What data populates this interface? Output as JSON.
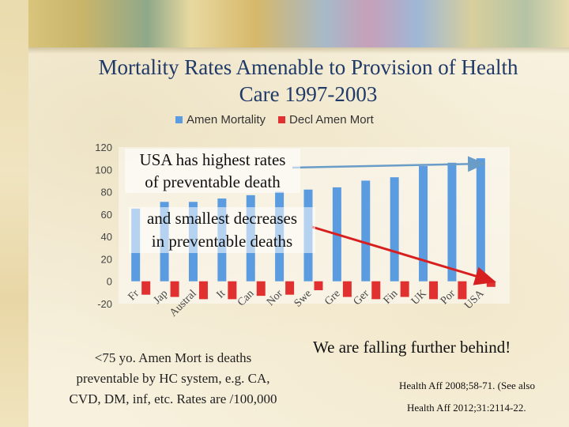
{
  "title_line1": "Mortality Rates Amenable to Provision of Health",
  "title_line2": "Care 1997-2003",
  "annotations": {
    "highest_line1": "USA has highest rates",
    "highest_line2": "of preventable death",
    "smallest_line1": "and smallest decreases",
    "smallest_line2": "in preventable deaths"
  },
  "note": {
    "line1": "<75 yo.  Amen Mort is deaths",
    "line2": "preventable by HC system, e.g. CA,",
    "line3": "CVD, DM, inf, etc. Rates are /100,000"
  },
  "falling_behind": "We are falling further behind!",
  "citation_line1": "Health Aff 2008;58-71. (See also",
  "citation_line2": "Health Aff 2012;31:2114-22.",
  "colors": {
    "amen": "#5b9bdf",
    "decl": "#e03030",
    "arrow_blue": "#6a9cc8",
    "arrow_red": "#d81f1f",
    "title": "#1f3a68"
  },
  "chart_data": {
    "type": "bar",
    "categories": [
      "Fr",
      "Jap",
      "Austral",
      "It",
      "Can",
      "Nor",
      "Swe",
      "Gre",
      "Ger",
      "Fin",
      "UK",
      "Por",
      "USA"
    ],
    "series": [
      {
        "name": "Amen Mortality",
        "values": [
          65,
          71,
          71,
          74,
          77,
          80,
          82,
          84,
          90,
          93,
          103,
          106,
          110
        ]
      },
      {
        "name": "Decl Amen Mort",
        "values": [
          -12,
          -14,
          -16,
          -16,
          -13,
          -12,
          -8,
          -14,
          -16,
          -14,
          -16,
          -16,
          -5
        ]
      }
    ],
    "yticks": [
      -20,
      0,
      20,
      40,
      60,
      80,
      100,
      120
    ],
    "ylim": [
      -20,
      120
    ],
    "legend_position": "top"
  }
}
